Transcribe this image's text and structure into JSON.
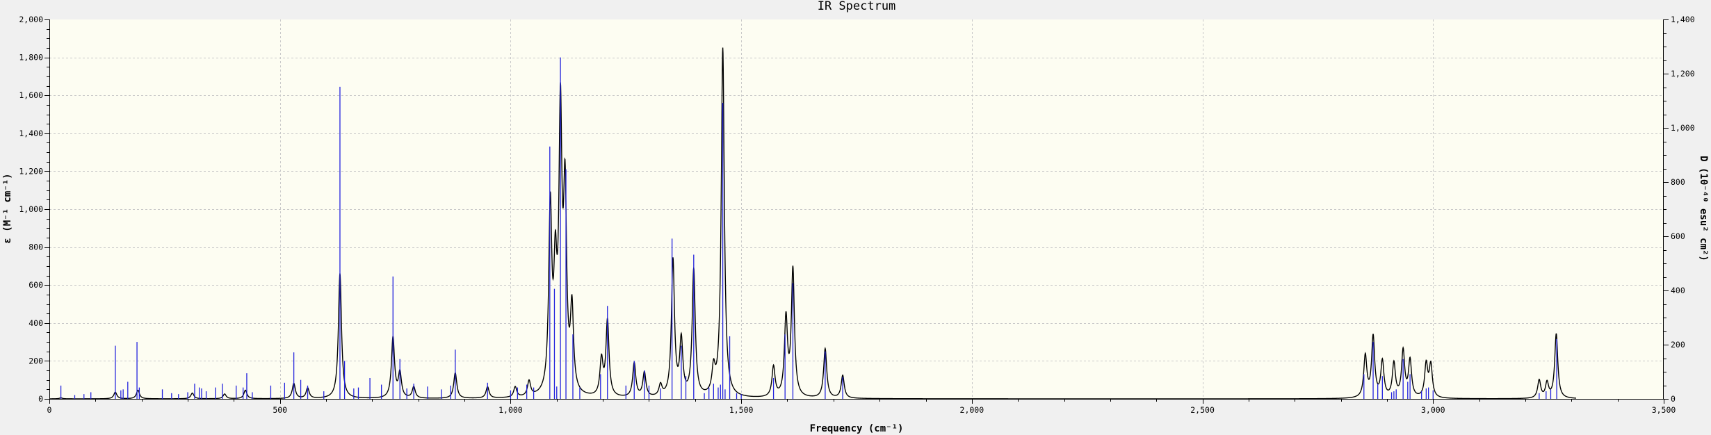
{
  "chart_data": {
    "type": "line",
    "title": "IR Spectrum",
    "xlabel": "Frequency (cm⁻¹)",
    "ylabel": "ε (M⁻¹ cm⁻¹)",
    "y2label": "D (10⁻⁴⁰ esu² cm²)",
    "xlim": [
      0,
      3500
    ],
    "ylim": [
      0,
      2000
    ],
    "y2lim": [
      0,
      1400
    ],
    "x_ticks": [
      "0",
      "500",
      "1,000",
      "1,500",
      "2,000",
      "2,500",
      "3,000",
      "3,500"
    ],
    "y_ticks": [
      "0",
      "200",
      "400",
      "600",
      "800",
      "1,000",
      "1,200",
      "1,400",
      "1,600",
      "1,800",
      "2,000"
    ],
    "y2_ticks": [
      "0",
      "200",
      "400",
      "600",
      "800",
      "1,000",
      "1,200",
      "1,400"
    ],
    "grid": true,
    "colors": {
      "background": "#fdfdf2",
      "spectrum": "#000000",
      "sticks": "#2222dd",
      "page": "#f0f0f0"
    },
    "series": [
      {
        "type": "line",
        "line_width_cm1": 4,
        "peaks": [
          {
            "x": 25,
            "y": 5
          },
          {
            "x": 143,
            "y": 35
          },
          {
            "x": 192,
            "y": 45
          },
          {
            "x": 310,
            "y": 30
          },
          {
            "x": 380,
            "y": 25
          },
          {
            "x": 425,
            "y": 45
          },
          {
            "x": 530,
            "y": 80
          },
          {
            "x": 560,
            "y": 55
          },
          {
            "x": 630,
            "y": 660
          },
          {
            "x": 745,
            "y": 320
          },
          {
            "x": 760,
            "y": 130
          },
          {
            "x": 790,
            "y": 60
          },
          {
            "x": 880,
            "y": 135
          },
          {
            "x": 950,
            "y": 60
          },
          {
            "x": 1010,
            "y": 55
          },
          {
            "x": 1040,
            "y": 80
          },
          {
            "x": 1086,
            "y": 960
          },
          {
            "x": 1097,
            "y": 570
          },
          {
            "x": 1108,
            "y": 1420
          },
          {
            "x": 1118,
            "y": 1000
          },
          {
            "x": 1133,
            "y": 430
          },
          {
            "x": 1197,
            "y": 190
          },
          {
            "x": 1210,
            "y": 400
          },
          {
            "x": 1268,
            "y": 180
          },
          {
            "x": 1290,
            "y": 130
          },
          {
            "x": 1325,
            "y": 60
          },
          {
            "x": 1352,
            "y": 720
          },
          {
            "x": 1370,
            "y": 290
          },
          {
            "x": 1397,
            "y": 670
          },
          {
            "x": 1440,
            "y": 130
          },
          {
            "x": 1460,
            "y": 1840
          },
          {
            "x": 1570,
            "y": 160
          },
          {
            "x": 1597,
            "y": 410
          },
          {
            "x": 1612,
            "y": 670
          },
          {
            "x": 1682,
            "y": 260
          },
          {
            "x": 1720,
            "y": 120
          },
          {
            "x": 2853,
            "y": 220
          },
          {
            "x": 2870,
            "y": 320
          },
          {
            "x": 2890,
            "y": 190
          },
          {
            "x": 2915,
            "y": 180
          },
          {
            "x": 2935,
            "y": 245
          },
          {
            "x": 2950,
            "y": 195
          },
          {
            "x": 2985,
            "y": 175
          },
          {
            "x": 2995,
            "y": 170
          },
          {
            "x": 3230,
            "y": 95
          },
          {
            "x": 3247,
            "y": 80
          },
          {
            "x": 3267,
            "y": 340
          }
        ]
      },
      {
        "type": "stick",
        "sticks": [
          {
            "x": 25,
            "y": 70
          },
          {
            "x": 55,
            "y": 20
          },
          {
            "x": 75,
            "y": 25
          },
          {
            "x": 90,
            "y": 35
          },
          {
            "x": 143,
            "y": 280
          },
          {
            "x": 155,
            "y": 45
          },
          {
            "x": 160,
            "y": 50
          },
          {
            "x": 170,
            "y": 90
          },
          {
            "x": 190,
            "y": 300
          },
          {
            "x": 195,
            "y": 60
          },
          {
            "x": 245,
            "y": 50
          },
          {
            "x": 265,
            "y": 30
          },
          {
            "x": 280,
            "y": 25
          },
          {
            "x": 300,
            "y": 35
          },
          {
            "x": 315,
            "y": 80
          },
          {
            "x": 325,
            "y": 60
          },
          {
            "x": 330,
            "y": 55
          },
          {
            "x": 340,
            "y": 40
          },
          {
            "x": 360,
            "y": 60
          },
          {
            "x": 375,
            "y": 80
          },
          {
            "x": 405,
            "y": 70
          },
          {
            "x": 420,
            "y": 60
          },
          {
            "x": 428,
            "y": 135
          },
          {
            "x": 440,
            "y": 35
          },
          {
            "x": 480,
            "y": 70
          },
          {
            "x": 510,
            "y": 85
          },
          {
            "x": 530,
            "y": 245
          },
          {
            "x": 545,
            "y": 100
          },
          {
            "x": 560,
            "y": 70
          },
          {
            "x": 595,
            "y": 40
          },
          {
            "x": 630,
            "y": 1645
          },
          {
            "x": 640,
            "y": 200
          },
          {
            "x": 660,
            "y": 55
          },
          {
            "x": 670,
            "y": 60
          },
          {
            "x": 695,
            "y": 110
          },
          {
            "x": 720,
            "y": 75
          },
          {
            "x": 745,
            "y": 645
          },
          {
            "x": 760,
            "y": 210
          },
          {
            "x": 775,
            "y": 55
          },
          {
            "x": 790,
            "y": 80
          },
          {
            "x": 820,
            "y": 65
          },
          {
            "x": 850,
            "y": 50
          },
          {
            "x": 870,
            "y": 70
          },
          {
            "x": 880,
            "y": 260
          },
          {
            "x": 950,
            "y": 85
          },
          {
            "x": 1000,
            "y": 45
          },
          {
            "x": 1015,
            "y": 60
          },
          {
            "x": 1035,
            "y": 75
          },
          {
            "x": 1050,
            "y": 60
          },
          {
            "x": 1085,
            "y": 1330
          },
          {
            "x": 1095,
            "y": 580
          },
          {
            "x": 1100,
            "y": 65
          },
          {
            "x": 1108,
            "y": 1800
          },
          {
            "x": 1120,
            "y": 1210
          },
          {
            "x": 1135,
            "y": 340
          },
          {
            "x": 1150,
            "y": 60
          },
          {
            "x": 1195,
            "y": 130
          },
          {
            "x": 1210,
            "y": 490
          },
          {
            "x": 1250,
            "y": 70
          },
          {
            "x": 1268,
            "y": 200
          },
          {
            "x": 1290,
            "y": 150
          },
          {
            "x": 1300,
            "y": 70
          },
          {
            "x": 1325,
            "y": 55
          },
          {
            "x": 1350,
            "y": 845
          },
          {
            "x": 1370,
            "y": 280
          },
          {
            "x": 1380,
            "y": 120
          },
          {
            "x": 1397,
            "y": 760
          },
          {
            "x": 1420,
            "y": 30
          },
          {
            "x": 1430,
            "y": 60
          },
          {
            "x": 1440,
            "y": 80
          },
          {
            "x": 1450,
            "y": 60
          },
          {
            "x": 1455,
            "y": 75
          },
          {
            "x": 1460,
            "y": 1560
          },
          {
            "x": 1465,
            "y": 50
          },
          {
            "x": 1475,
            "y": 330
          },
          {
            "x": 1490,
            "y": 30
          },
          {
            "x": 1500,
            "y": 25
          },
          {
            "x": 1570,
            "y": 110
          },
          {
            "x": 1595,
            "y": 340
          },
          {
            "x": 1612,
            "y": 610
          },
          {
            "x": 1682,
            "y": 250
          },
          {
            "x": 1720,
            "y": 115
          },
          {
            "x": 2850,
            "y": 130
          },
          {
            "x": 2870,
            "y": 300
          },
          {
            "x": 2880,
            "y": 80
          },
          {
            "x": 2890,
            "y": 120
          },
          {
            "x": 2910,
            "y": 35
          },
          {
            "x": 2915,
            "y": 40
          },
          {
            "x": 2920,
            "y": 50
          },
          {
            "x": 2935,
            "y": 210
          },
          {
            "x": 2945,
            "y": 90
          },
          {
            "x": 2950,
            "y": 130
          },
          {
            "x": 2975,
            "y": 40
          },
          {
            "x": 2985,
            "y": 55
          },
          {
            "x": 2990,
            "y": 60
          },
          {
            "x": 3000,
            "y": 45
          },
          {
            "x": 3230,
            "y": 30
          },
          {
            "x": 3245,
            "y": 40
          },
          {
            "x": 3255,
            "y": 50
          },
          {
            "x": 3268,
            "y": 315
          }
        ]
      }
    ]
  }
}
